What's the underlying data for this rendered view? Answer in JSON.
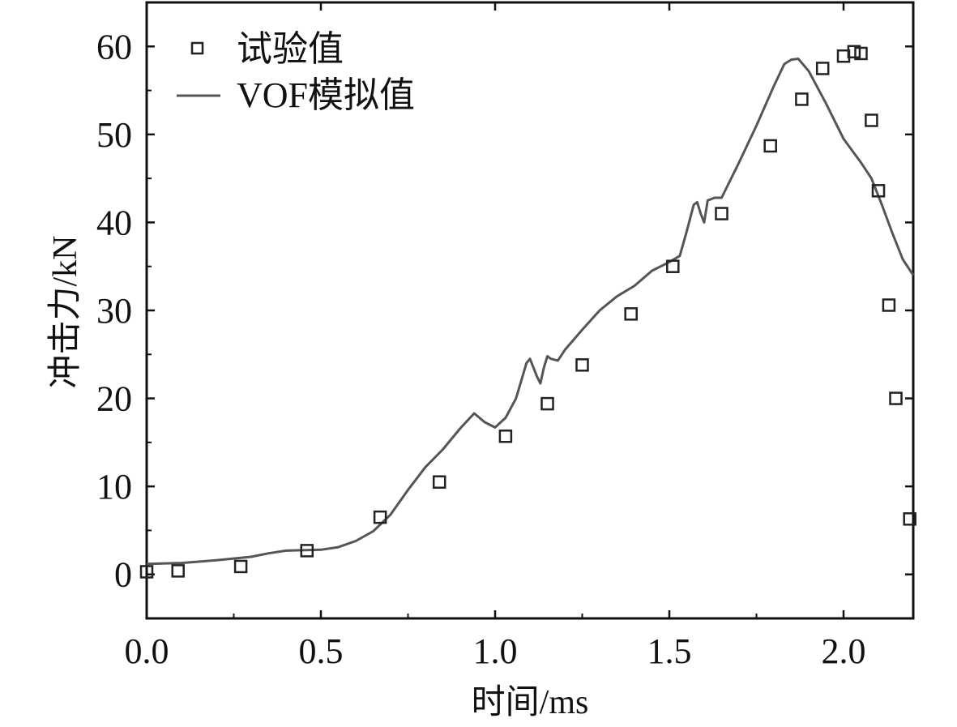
{
  "chart_data": {
    "type": "scatter",
    "xlabel": "时间/ms",
    "ylabel": "冲击力/kN",
    "xlim": [
      0.0,
      2.2
    ],
    "ylim": [
      -5,
      65
    ],
    "xticks": [
      0.0,
      0.5,
      1.0,
      1.5,
      2.0
    ],
    "xtick_labels": [
      "0.0",
      "0.5",
      "1.0",
      "1.5",
      "2.0"
    ],
    "yticks": [
      0,
      10,
      20,
      30,
      40,
      50,
      60
    ],
    "ytick_labels": [
      "0",
      "10",
      "20",
      "30",
      "40",
      "50",
      "60"
    ],
    "grid": false,
    "legend_position": "top-left",
    "series": [
      {
        "name": "试验值",
        "kind": "scatter",
        "marker": "open-square",
        "color": "#222222",
        "x": [
          0.0,
          0.09,
          0.27,
          0.46,
          0.67,
          0.84,
          1.03,
          1.15,
          1.25,
          1.39,
          1.51,
          1.65,
          1.79,
          1.88,
          1.94,
          2.0,
          2.03,
          2.05,
          2.08,
          2.1,
          2.13,
          2.15,
          2.19
        ],
        "y": [
          0.3,
          0.4,
          0.9,
          2.7,
          6.5,
          10.5,
          15.7,
          19.4,
          23.8,
          29.6,
          35.0,
          41.0,
          48.7,
          54.0,
          57.5,
          58.9,
          59.4,
          59.2,
          51.6,
          43.6,
          30.6,
          20.0,
          6.3
        ]
      },
      {
        "name": "VOF模拟值",
        "kind": "line",
        "color": "#555555",
        "x": [
          0.0,
          0.1,
          0.2,
          0.3,
          0.35,
          0.4,
          0.5,
          0.55,
          0.6,
          0.65,
          0.7,
          0.75,
          0.8,
          0.85,
          0.9,
          0.94,
          0.97,
          1.0,
          1.03,
          1.06,
          1.09,
          1.1,
          1.12,
          1.13,
          1.14,
          1.15,
          1.16,
          1.18,
          1.2,
          1.25,
          1.3,
          1.35,
          1.4,
          1.45,
          1.5,
          1.53,
          1.55,
          1.57,
          1.58,
          1.59,
          1.6,
          1.61,
          1.63,
          1.65,
          1.7,
          1.75,
          1.8,
          1.83,
          1.85,
          1.87,
          1.9,
          1.95,
          2.0,
          2.05,
          2.08,
          2.11,
          2.14,
          2.17,
          2.2
        ],
        "y": [
          1.2,
          1.3,
          1.6,
          2.0,
          2.4,
          2.7,
          2.8,
          3.1,
          3.8,
          4.9,
          6.8,
          9.6,
          12.2,
          14.2,
          16.6,
          18.3,
          17.3,
          16.7,
          17.8,
          20.0,
          24.0,
          24.5,
          22.5,
          21.7,
          23.5,
          24.8,
          24.5,
          24.3,
          25.5,
          27.8,
          30.0,
          31.6,
          32.8,
          34.5,
          35.5,
          36.2,
          39.0,
          42.0,
          42.3,
          41.0,
          40.0,
          42.5,
          42.8,
          42.8,
          46.8,
          51.0,
          55.5,
          58.0,
          58.5,
          58.6,
          57.2,
          53.5,
          49.5,
          46.8,
          45.0,
          42.0,
          38.8,
          35.8,
          34.0
        ]
      }
    ]
  }
}
